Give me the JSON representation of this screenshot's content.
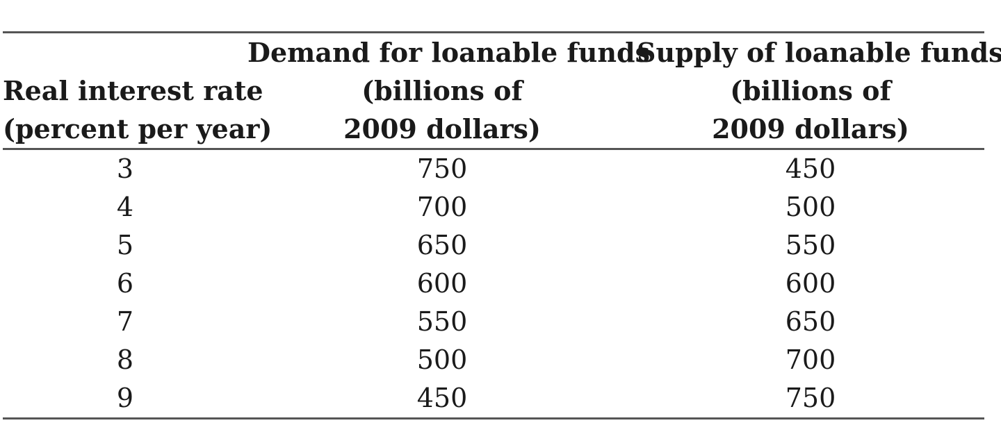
{
  "table": {
    "headers": {
      "col1": [
        "",
        "Real interest rate",
        "(percent per year)"
      ],
      "col2": [
        "Demand for loanable funds",
        "(billions of",
        "2009 dollars)"
      ],
      "col3": [
        "Supply of loanable funds",
        "(billions of",
        "2009 dollars)"
      ]
    },
    "rows": [
      {
        "rate": "3",
        "demand": "750",
        "supply": "450"
      },
      {
        "rate": "4",
        "demand": "700",
        "supply": "500"
      },
      {
        "rate": "5",
        "demand": "650",
        "supply": "550"
      },
      {
        "rate": "6",
        "demand": "600",
        "supply": "600"
      },
      {
        "rate": "7",
        "demand": "550",
        "supply": "650"
      },
      {
        "rate": "8",
        "demand": "500",
        "supply": "700"
      },
      {
        "rate": "9",
        "demand": "450",
        "supply": "750"
      }
    ]
  }
}
